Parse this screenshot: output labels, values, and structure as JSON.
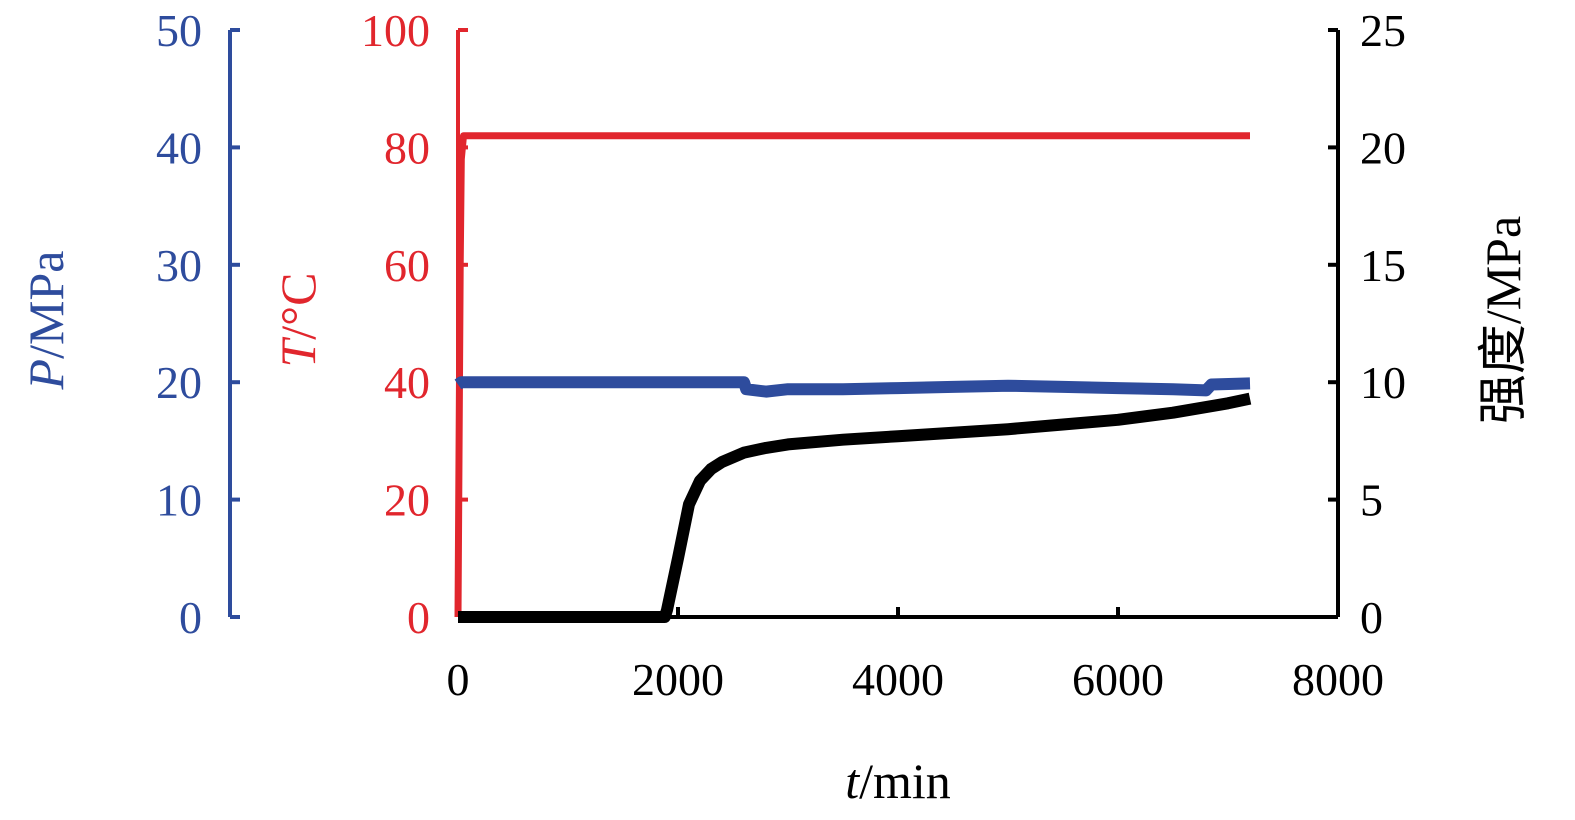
{
  "chart_data": {
    "type": "line",
    "x_axis": {
      "label_var": "t",
      "label_unit": "/min",
      "range": [
        0,
        8000
      ],
      "ticks": [
        0,
        2000,
        4000,
        6000,
        8000
      ]
    },
    "axes": [
      {
        "id": "P",
        "label_var": "P",
        "label_unit": "/MPa",
        "range": [
          0,
          50
        ],
        "ticks": [
          0,
          10,
          20,
          30,
          40,
          50
        ],
        "color": "#2E4C9D",
        "side": "left-outer"
      },
      {
        "id": "T",
        "label_var": "T",
        "label_unit": "/°C",
        "range": [
          0,
          100
        ],
        "ticks": [
          0,
          20,
          40,
          60,
          80,
          100
        ],
        "color": "#E1262D",
        "side": "left-inner"
      },
      {
        "id": "S",
        "label_var": "",
        "label_unit": "强度/MPa",
        "range": [
          0,
          25
        ],
        "ticks": [
          0,
          5,
          10,
          15,
          20,
          25
        ],
        "color": "#000000",
        "side": "right"
      }
    ],
    "series": [
      {
        "axis": "T",
        "color": "#E1262D",
        "x": [
          0,
          10,
          20,
          30,
          50,
          100,
          1000,
          3000,
          5000,
          7000,
          7200
        ],
        "y": [
          0,
          30,
          60,
          78,
          82,
          82,
          82,
          82,
          82,
          82,
          82
        ]
      },
      {
        "axis": "P",
        "color": "#2E4C9D",
        "x": [
          0,
          30,
          500,
          1500,
          2600,
          2620,
          2800,
          3000,
          3500,
          4000,
          4500,
          5000,
          5500,
          6000,
          6500,
          6800,
          6850,
          7200
        ],
        "y": [
          19.8,
          20,
          20,
          20,
          20,
          19.4,
          19.2,
          19.4,
          19.4,
          19.5,
          19.6,
          19.7,
          19.6,
          19.5,
          19.4,
          19.3,
          19.8,
          19.9
        ]
      },
      {
        "axis": "S",
        "color": "#000000",
        "x": [
          0,
          500,
          1000,
          1500,
          1880,
          1900,
          2000,
          2100,
          2200,
          2300,
          2400,
          2600,
          2800,
          3000,
          3500,
          4000,
          4500,
          5000,
          5500,
          6000,
          6500,
          7000,
          7200
        ],
        "y": [
          0,
          0,
          0,
          0,
          0,
          0.3,
          2.5,
          4.8,
          5.8,
          6.3,
          6.6,
          7.0,
          7.2,
          7.35,
          7.55,
          7.7,
          7.85,
          8.0,
          8.2,
          8.4,
          8.7,
          9.1,
          9.3
        ]
      }
    ]
  }
}
